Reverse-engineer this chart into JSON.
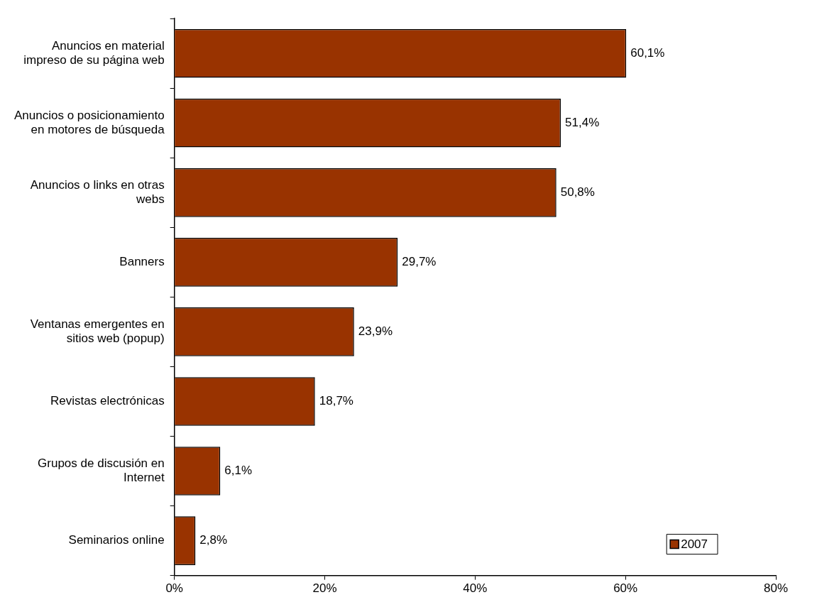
{
  "chart_data": {
    "type": "bar",
    "orientation": "horizontal",
    "categories": [
      "Anuncios en material impreso de su página web",
      "Anuncios o posicionamiento en motores de búsqueda",
      "Anuncios o links en otras webs",
      "Banners",
      "Ventanas emergentes en sitios web (popup)",
      "Revistas electrónicas",
      "Grupos de discusión en Internet",
      "Seminarios online"
    ],
    "series": [
      {
        "name": "2007",
        "color": "#993300",
        "values": [
          60.1,
          51.4,
          50.8,
          29.7,
          23.9,
          18.7,
          6.1,
          2.8
        ],
        "value_labels": [
          "60,1%",
          "51,4%",
          "50,8%",
          "29,7%",
          "23,9%",
          "18,7%",
          "6,1%",
          "2,8%"
        ]
      }
    ],
    "xlim": [
      0,
      80
    ],
    "xticks": [
      {
        "value": 0,
        "label": "0%"
      },
      {
        "value": 20,
        "label": "20%"
      },
      {
        "value": 40,
        "label": "40%"
      },
      {
        "value": 60,
        "label": "60%"
      },
      {
        "value": 80,
        "label": "80%"
      }
    ],
    "grid": false,
    "legend": "bottom right"
  }
}
